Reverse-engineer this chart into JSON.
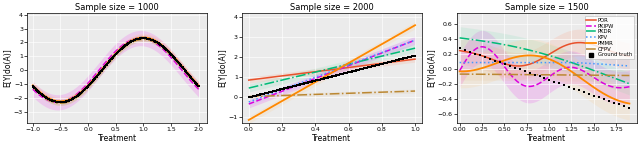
{
  "panel1": {
    "title": "Sample size = 1000",
    "xlabel": "Treatment",
    "ylabel": "E[Y|do(A)]",
    "xlim": [
      -1.1,
      2.15
    ],
    "ylim": [
      -3.8,
      4.1
    ],
    "xticks": [
      -1.0,
      -0.5,
      0.0,
      0.5,
      1.0,
      1.5,
      2.0
    ]
  },
  "panel2": {
    "title": "Sample size = 2000",
    "xlabel": "Treatment",
    "ylabel": "E[Y|do(A)]",
    "xlim": [
      -0.04,
      1.04
    ],
    "ylim": [
      -1.3,
      4.2
    ],
    "xticks": [
      0.0,
      0.2,
      0.4,
      0.6,
      0.8,
      1.0
    ]
  },
  "panel3": {
    "title": "Sample size = 1500",
    "xlabel": "Treatment",
    "ylabel": "E[Y|do(A)]",
    "xlim": [
      -0.03,
      1.98
    ],
    "ylim": [
      -0.72,
      0.75
    ],
    "xticks": [
      0.0,
      0.25,
      0.5,
      0.75,
      1.0,
      1.25,
      1.5,
      1.75
    ]
  },
  "methods_order": [
    "POR",
    "PKIPW",
    "PKDR",
    "KPV",
    "PMMR",
    "OFPV"
  ],
  "methods": {
    "POR": {
      "color": "#e8502a",
      "linestyle": "-",
      "linewidth": 1.1
    },
    "PKIPW": {
      "color": "#dd00dd",
      "linestyle": "--",
      "linewidth": 1.1
    },
    "PKDR": {
      "color": "#00bb77",
      "linestyle": "-.",
      "linewidth": 1.1
    },
    "KPV": {
      "color": "#4499ff",
      "linestyle": ":",
      "linewidth": 1.1
    },
    "PMMR": {
      "color": "#ff8800",
      "linestyle": "-",
      "linewidth": 1.3
    },
    "OFPV": {
      "color": "#bb8833",
      "linestyle": "-.",
      "linewidth": 1.1
    }
  },
  "band_alpha": {
    "POR": 0.18,
    "PKIPW": 0.25,
    "PKDR": 0.15,
    "KPV": 0.12,
    "PMMR": 0.18,
    "OFPV": 0.1
  },
  "band_colors": {
    "POR": "#ff9977",
    "PKIPW": "#ee66ee",
    "PKDR": "#66ddaa",
    "KPV": "#99bbff",
    "PMMR": "#ffcc88",
    "OFPV": "#ddaa66"
  },
  "background": "#ebebeb"
}
